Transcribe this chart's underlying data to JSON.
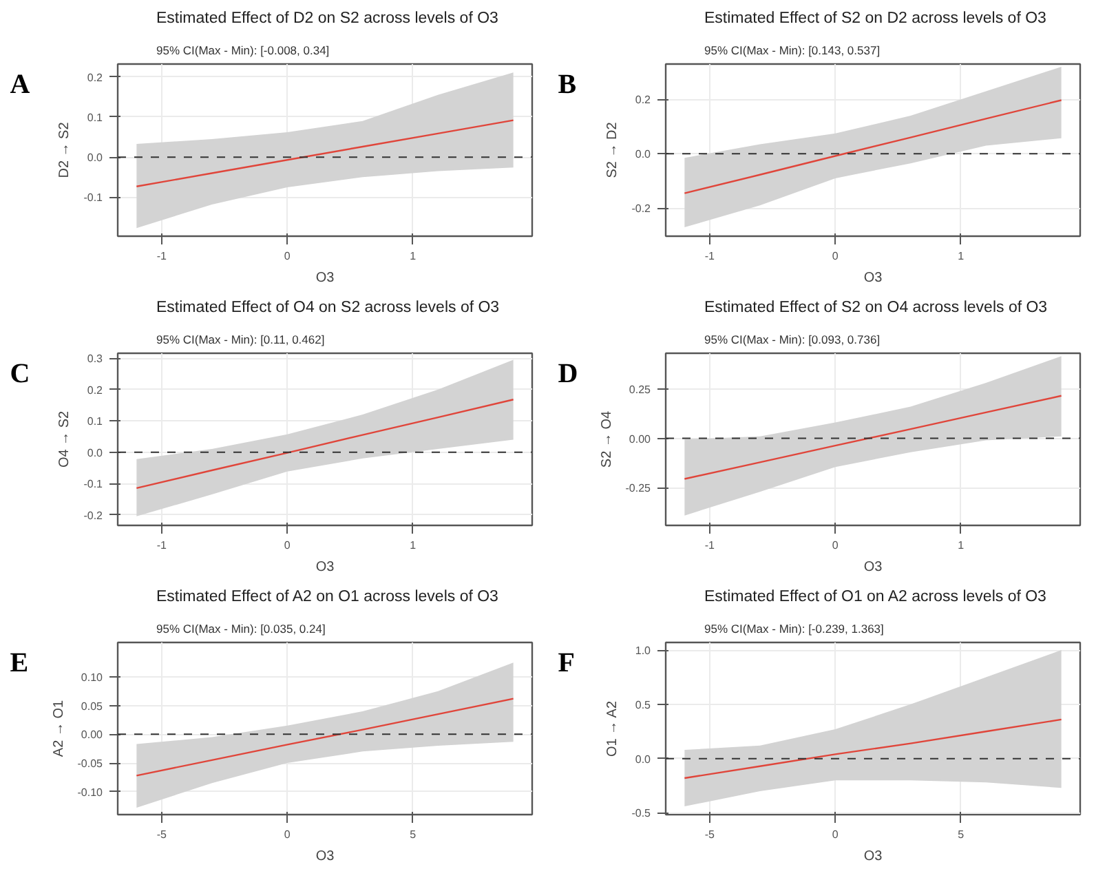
{
  "chart_data": [
    {
      "type": "line",
      "title": "Estimated Effect of D2 on S2 across levels of O3",
      "subtitle": "95% CI(Max - Min): [-0.008, 0.34]",
      "xlabel": "O3",
      "ylabel": "D2 → S2",
      "annotations": [
        "A"
      ],
      "grid": true,
      "line_style": "solid",
      "x": [
        -1.2,
        -0.6,
        0,
        0.6,
        1.2,
        1.8
      ],
      "series": [
        {
          "color": "#e0453a",
          "values": [
            -0.073,
            -0.04,
            -0.007,
            0.026,
            0.059,
            0.092
          ],
          "lower": [
            -0.177,
            -0.118,
            -0.075,
            -0.05,
            -0.035,
            -0.026
          ],
          "upper": [
            0.033,
            0.045,
            0.062,
            0.09,
            0.155,
            0.211
          ]
        }
      ],
      "xlim": [
        -1.35,
        1.95
      ],
      "ylim": [
        -0.197,
        0.232
      ],
      "xticks": [
        -1,
        0,
        1
      ],
      "yticks": [
        -0.1,
        {
          "value": 0,
          "label": "0.0"
        },
        0.1,
        0.2
      ],
      "ref_lines": [
        {
          "axis": "y",
          "value": 0,
          "color": "#333333",
          "line_style": "dashed"
        }
      ]
    },
    {
      "type": "line",
      "title": "Estimated Effect of S2 on D2 across levels of O3",
      "subtitle": "95% CI(Max - Min): [0.143, 0.537]",
      "xlabel": "O3",
      "ylabel": "S2 → D2",
      "annotations": [
        "B"
      ],
      "grid": true,
      "line_style": "solid",
      "x": [
        -1.2,
        -0.6,
        0,
        0.6,
        1.2,
        1.8
      ],
      "series": [
        {
          "color": "#e0453a",
          "values": [
            -0.145,
            -0.077,
            -0.008,
            0.06,
            0.129,
            0.197
          ],
          "lower": [
            -0.27,
            -0.19,
            -0.09,
            -0.035,
            0.03,
            0.057
          ],
          "upper": [
            -0.015,
            0.035,
            0.075,
            0.14,
            0.23,
            0.32
          ]
        }
      ],
      "xlim": [
        -1.35,
        1.95
      ],
      "ylim": [
        -0.303,
        0.33
      ],
      "xticks": [
        -1,
        0,
        1
      ],
      "yticks": [
        -0.2,
        {
          "value": 0,
          "label": "0.0"
        },
        0.2
      ],
      "ref_lines": [
        {
          "axis": "y",
          "value": 0,
          "color": "#333333",
          "line_style": "dashed"
        }
      ]
    },
    {
      "type": "line",
      "title": "Estimated Effect of O4 on S2 across levels of O3",
      "subtitle": "95% CI(Max - Min): [0.11, 0.462]",
      "xlabel": "O3",
      "ylabel": "O4 → S2",
      "annotations": [
        "C"
      ],
      "grid": true,
      "line_style": "solid",
      "x": [
        -1.2,
        -0.6,
        0,
        0.6,
        1.2,
        1.8
      ],
      "series": [
        {
          "color": "#e0453a",
          "values": [
            -0.115,
            -0.058,
            -0.002,
            0.055,
            0.111,
            0.168
          ],
          "lower": [
            -0.205,
            -0.135,
            -0.062,
            -0.02,
            0.01,
            0.04
          ],
          "upper": [
            -0.022,
            0.01,
            0.057,
            0.12,
            0.2,
            0.295
          ]
        }
      ],
      "xlim": [
        -1.35,
        1.95
      ],
      "ylim": [
        -0.234,
        0.316
      ],
      "xticks": [
        -1,
        0,
        1
      ],
      "yticks": [
        -0.2,
        -0.1,
        {
          "value": 0,
          "label": "0.0"
        },
        0.1,
        0.2,
        0.3
      ],
      "ref_lines": [
        {
          "axis": "y",
          "value": 0,
          "color": "#333333",
          "line_style": "dashed"
        }
      ]
    },
    {
      "type": "line",
      "title": "Estimated Effect of S2 on O4 across levels of O3",
      "subtitle": "95% CI(Max - Min): [0.093, 0.736]",
      "xlabel": "O3",
      "ylabel": "S2 → O4",
      "annotations": [
        "D"
      ],
      "grid": true,
      "line_style": "solid",
      "x": [
        -1.2,
        -0.6,
        0,
        0.6,
        1.2,
        1.8
      ],
      "series": [
        {
          "color": "#e0453a",
          "values": [
            -0.205,
            -0.121,
            -0.037,
            0.047,
            0.131,
            0.215
          ],
          "lower": [
            -0.39,
            -0.27,
            -0.145,
            -0.07,
            -0.01,
            0.01
          ],
          "upper": [
            -0.005,
            0.01,
            0.08,
            0.16,
            0.28,
            0.415
          ]
        }
      ],
      "xlim": [
        -1.35,
        1.95
      ],
      "ylim": [
        -0.44,
        0.43
      ],
      "xticks": [
        -1,
        0,
        1
      ],
      "yticks": [
        -0.25,
        {
          "value": 0,
          "label": "0.00"
        },
        0.25
      ],
      "ref_lines": [
        {
          "axis": "y",
          "value": 0,
          "color": "#333333",
          "line_style": "dashed"
        }
      ]
    },
    {
      "type": "line",
      "title": "Estimated Effect of A2 on O1 across levels of O3",
      "subtitle": "95% CI(Max - Min): [0.035, 0.24]",
      "xlabel": "O3",
      "ylabel": "A2 → O1",
      "annotations": [
        "E"
      ],
      "grid": true,
      "line_style": "solid",
      "x": [
        -6,
        -3,
        0,
        3,
        6,
        9
      ],
      "series": [
        {
          "color": "#e0453a",
          "values": [
            -0.072,
            -0.045,
            -0.018,
            0.008,
            0.035,
            0.062
          ],
          "lower": [
            -0.128,
            -0.085,
            -0.05,
            -0.03,
            -0.02,
            -0.013
          ],
          "upper": [
            -0.017,
            -0.005,
            0.015,
            0.04,
            0.075,
            0.125
          ]
        }
      ],
      "xlim": [
        -6.75,
        9.75
      ],
      "ylim": [
        -0.14,
        0.16
      ],
      "xticks": [
        -5,
        0,
        5
      ],
      "yticks": [
        {
          "value": -0.1,
          "label": "-0.10"
        },
        -0.05,
        {
          "value": 0,
          "label": "0.00"
        },
        0.05,
        {
          "value": 0.1,
          "label": "0.10"
        }
      ],
      "ref_lines": [
        {
          "axis": "y",
          "value": 0,
          "color": "#333333",
          "line_style": "dashed"
        }
      ]
    },
    {
      "type": "line",
      "title": "Estimated Effect of O1 on A2 across levels of O3",
      "subtitle": "95% CI(Max - Min): [-0.239, 1.363]",
      "xlabel": "O3",
      "ylabel": "O1 → A2",
      "annotations": [
        "F"
      ],
      "grid": true,
      "line_style": "solid",
      "x": [
        -6,
        -3,
        0,
        3,
        6,
        9
      ],
      "series": [
        {
          "color": "#e0453a",
          "values": [
            -0.18,
            -0.07,
            0.04,
            0.14,
            0.25,
            0.36
          ],
          "lower": [
            -0.44,
            -0.3,
            -0.2,
            -0.2,
            -0.22,
            -0.27
          ],
          "upper": [
            0.08,
            0.12,
            0.27,
            0.5,
            0.75,
            1.0
          ]
        }
      ],
      "xlim": [
        -6.75,
        9.75
      ],
      "ylim": [
        -0.516,
        1.07
      ],
      "xticks": [
        -5,
        0,
        5
      ],
      "yticks": [
        -0.5,
        {
          "value": 0,
          "label": "0.0"
        },
        0.5,
        {
          "value": 1,
          "label": "1.0"
        }
      ],
      "ref_lines": [
        {
          "axis": "y",
          "value": 0,
          "color": "#333333",
          "line_style": "dashed"
        }
      ]
    }
  ]
}
